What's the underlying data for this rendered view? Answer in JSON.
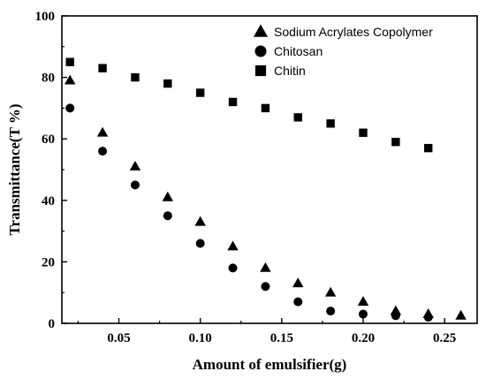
{
  "chart_data": {
    "type": "scatter",
    "xlabel": "Amount of emulsifier(g)",
    "ylabel": "Transmittance(T %)",
    "xlim": [
      0.015,
      0.27
    ],
    "ylim": [
      0,
      100
    ],
    "x_ticks": [
      0.05,
      0.1,
      0.15,
      0.2,
      0.25
    ],
    "x_tick_labels": [
      "0.05",
      "0.10",
      "0.15",
      "0.20",
      "0.25"
    ],
    "y_ticks": [
      0,
      20,
      40,
      60,
      80,
      100
    ],
    "y_tick_labels": [
      "0",
      "20",
      "40",
      "60",
      "80",
      "100"
    ],
    "legend_position": "top-right",
    "grid": false,
    "series": [
      {
        "name": "Sodium Acrylates Copolymer",
        "marker": "triangle",
        "x": [
          0.02,
          0.04,
          0.06,
          0.08,
          0.1,
          0.12,
          0.14,
          0.16,
          0.18,
          0.2,
          0.22,
          0.24,
          0.26
        ],
        "y": [
          79,
          62,
          51,
          41,
          33,
          25,
          18,
          13,
          10,
          7,
          4,
          3,
          2.5
        ]
      },
      {
        "name": "Chitosan",
        "marker": "circle",
        "x": [
          0.02,
          0.04,
          0.06,
          0.08,
          0.1,
          0.12,
          0.14,
          0.16,
          0.18,
          0.2,
          0.22,
          0.24
        ],
        "y": [
          70,
          56,
          45,
          35,
          26,
          18,
          12,
          7,
          4,
          3,
          2.5,
          2
        ]
      },
      {
        "name": "Chitin",
        "marker": "square",
        "x": [
          0.02,
          0.04,
          0.06,
          0.08,
          0.1,
          0.12,
          0.14,
          0.16,
          0.18,
          0.2,
          0.22,
          0.24
        ],
        "y": [
          85,
          83,
          80,
          78,
          75,
          72,
          70,
          67,
          65,
          62,
          59,
          57
        ]
      }
    ],
    "color": "#000000"
  }
}
